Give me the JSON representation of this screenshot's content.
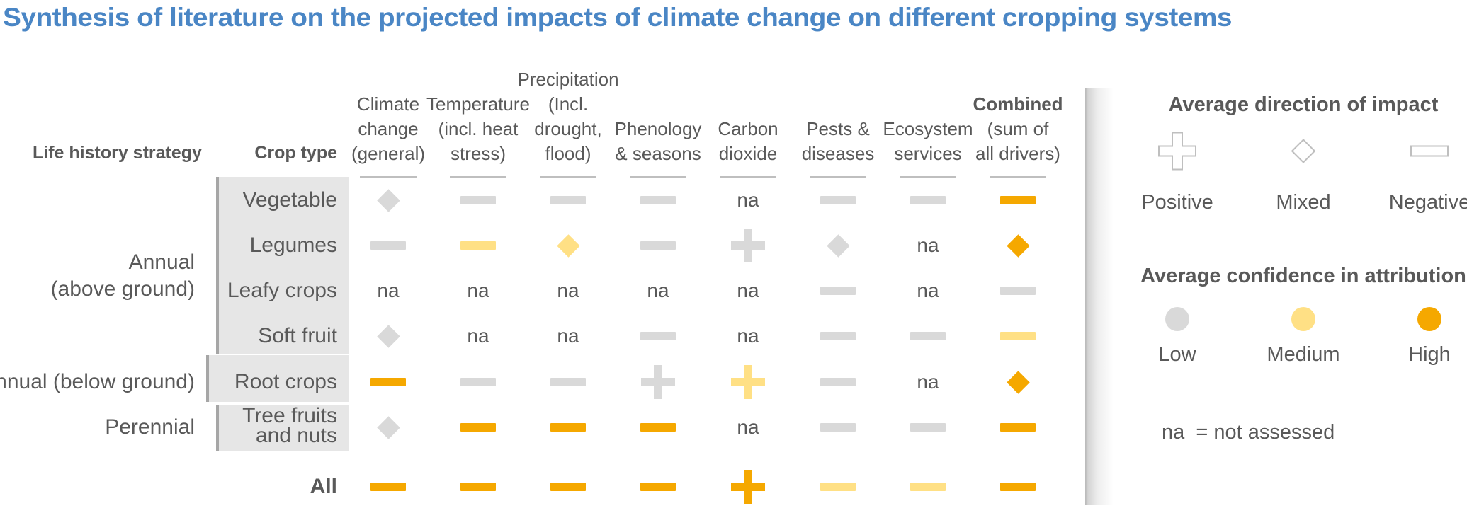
{
  "title": "Synthesis of literature on the projected impacts of climate change on different cropping systems",
  "colors": {
    "title": "#4a86c5",
    "low": "#d9d9d9",
    "medium": "#ffe085",
    "high": "#f5a800",
    "shade": "#e6e6e6",
    "text": "#595959"
  },
  "header": {
    "life_history_strategy": "Life history strategy",
    "crop_type": "Crop type"
  },
  "columns": [
    {
      "lines": [
        "Climate",
        "change",
        "(general)"
      ]
    },
    {
      "lines": [
        "Temperature",
        "(incl. heat",
        "stress)"
      ]
    },
    {
      "lines": [
        "Precipitation",
        "(Incl.",
        "drought,",
        "flood)"
      ]
    },
    {
      "lines": [
        "Phenology",
        "& seasons"
      ]
    },
    {
      "lines": [
        "Carbon",
        "dioxide"
      ]
    },
    {
      "lines": [
        "Pests &",
        "diseases"
      ]
    },
    {
      "lines": [
        "Ecosystem",
        "services"
      ]
    },
    {
      "lines": [
        "Combined",
        "(sum of",
        "all drivers)"
      ],
      "bold_first": true
    }
  ],
  "groups": [
    {
      "lines": [
        "Annual",
        "(above ground)"
      ]
    },
    {
      "lines": [
        "Annual (below ground)"
      ]
    },
    {
      "lines": [
        "Perennial"
      ]
    }
  ],
  "rows": [
    {
      "crop": [
        "Vegetable"
      ],
      "cells": [
        [
          "mixed",
          "low"
        ],
        [
          "negative",
          "low"
        ],
        [
          "negative",
          "low"
        ],
        [
          "negative",
          "low"
        ],
        [
          "na"
        ],
        [
          "negative",
          "low"
        ],
        [
          "negative",
          "low"
        ],
        [
          "negative",
          "high"
        ]
      ]
    },
    {
      "crop": [
        "Legumes"
      ],
      "cells": [
        [
          "negative",
          "low"
        ],
        [
          "negative",
          "medium"
        ],
        [
          "mixed",
          "medium"
        ],
        [
          "negative",
          "low"
        ],
        [
          "positive",
          "low"
        ],
        [
          "mixed",
          "low"
        ],
        [
          "na"
        ],
        [
          "mixed",
          "high"
        ]
      ]
    },
    {
      "crop": [
        "Leafy crops"
      ],
      "cells": [
        [
          "na"
        ],
        [
          "na"
        ],
        [
          "na"
        ],
        [
          "na"
        ],
        [
          "na"
        ],
        [
          "negative",
          "low"
        ],
        [
          "na"
        ],
        [
          "negative",
          "low"
        ]
      ]
    },
    {
      "crop": [
        "Soft fruit"
      ],
      "cells": [
        [
          "mixed",
          "low"
        ],
        [
          "na"
        ],
        [
          "na"
        ],
        [
          "negative",
          "low"
        ],
        [
          "na"
        ],
        [
          "negative",
          "low"
        ],
        [
          "negative",
          "low"
        ],
        [
          "negative",
          "medium"
        ]
      ]
    },
    {
      "crop": [
        "Root crops"
      ],
      "cells": [
        [
          "negative",
          "high"
        ],
        [
          "negative",
          "low"
        ],
        [
          "negative",
          "low"
        ],
        [
          "positive",
          "low"
        ],
        [
          "positive",
          "medium"
        ],
        [
          "negative",
          "low"
        ],
        [
          "na"
        ],
        [
          "mixed",
          "high"
        ]
      ]
    },
    {
      "crop": [
        "Tree fruits",
        "and nuts"
      ],
      "cells": [
        [
          "mixed",
          "low"
        ],
        [
          "negative",
          "high"
        ],
        [
          "negative",
          "high"
        ],
        [
          "negative",
          "high"
        ],
        [
          "na"
        ],
        [
          "negative",
          "low"
        ],
        [
          "negative",
          "low"
        ],
        [
          "negative",
          "high"
        ]
      ]
    },
    {
      "crop": [
        "All"
      ],
      "all": true,
      "cells": [
        [
          "negative",
          "high"
        ],
        [
          "negative",
          "high"
        ],
        [
          "negative",
          "high"
        ],
        [
          "negative",
          "high"
        ],
        [
          "positive",
          "high"
        ],
        [
          "negative",
          "medium"
        ],
        [
          "negative",
          "medium"
        ],
        [
          "negative",
          "high"
        ]
      ]
    }
  ],
  "na_text": "na",
  "legend": {
    "direction_title": "Average direction of impact",
    "direction_items": [
      {
        "label": "Positive",
        "shape": "positive"
      },
      {
        "label": "Mixed",
        "shape": "mixed"
      },
      {
        "label": "Negative",
        "shape": "negative"
      }
    ],
    "confidence_title": "Average confidence in attribution",
    "confidence_items": [
      {
        "label": "Low",
        "level": "low"
      },
      {
        "label": "Medium",
        "level": "medium"
      },
      {
        "label": "High",
        "level": "high"
      }
    ],
    "na_note": "na  = not assessed"
  }
}
